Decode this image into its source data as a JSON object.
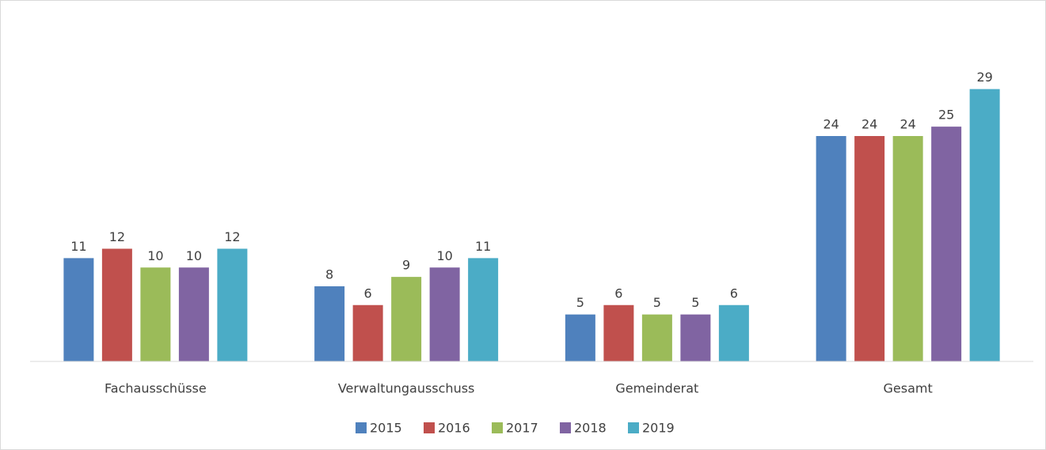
{
  "chart_data": {
    "type": "bar",
    "categories": [
      "Fachausschüsse",
      "Verwaltungausschuss",
      "Gemeinderat",
      "Gesamt"
    ],
    "series": [
      {
        "name": "2015",
        "color": "#4f81bd",
        "values": [
          11,
          8,
          5,
          24
        ]
      },
      {
        "name": "2016",
        "color": "#c0504d",
        "values": [
          12,
          6,
          6,
          24
        ]
      },
      {
        "name": "2017",
        "color": "#9bbb59",
        "values": [
          10,
          9,
          5,
          24
        ]
      },
      {
        "name": "2018",
        "color": "#8064a2",
        "values": [
          10,
          10,
          5,
          25
        ]
      },
      {
        "name": "2019",
        "color": "#4bacc6",
        "values": [
          12,
          11,
          6,
          29
        ]
      }
    ],
    "ylim": [
      0,
      32
    ],
    "legend": "bottom"
  }
}
